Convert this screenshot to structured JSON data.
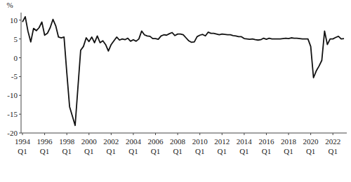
{
  "chart_data": {
    "type": "line",
    "y_label": "%",
    "categories": [
      "1994 Q1",
      null,
      null,
      null,
      null,
      null,
      null,
      null,
      "1996 Q1",
      null,
      null,
      null,
      null,
      null,
      null,
      null,
      "1998 Q1",
      null,
      null,
      null,
      null,
      null,
      null,
      null,
      "2000 Q1",
      null,
      null,
      null,
      null,
      null,
      null,
      null,
      "2002 Q1",
      null,
      null,
      null,
      null,
      null,
      null,
      null,
      "2004 Q1",
      null,
      null,
      null,
      null,
      null,
      null,
      null,
      "2006 Q1",
      null,
      null,
      null,
      null,
      null,
      null,
      null,
      "2008 Q1",
      null,
      null,
      null,
      null,
      null,
      null,
      null,
      "2010 Q1",
      null,
      null,
      null,
      null,
      null,
      null,
      null,
      "2012 Q1",
      null,
      null,
      null,
      null,
      null,
      null,
      null,
      "2014 Q1",
      null,
      null,
      null,
      null,
      null,
      null,
      null,
      "2016 Q1",
      null,
      null,
      null,
      null,
      null,
      null,
      null,
      "2018 Q1",
      null,
      null,
      null,
      null,
      null,
      null,
      null,
      "2020 Q1",
      null,
      null,
      null,
      null,
      null,
      null,
      null,
      "2022 Q1",
      null,
      null,
      null,
      null
    ],
    "values": [
      9.5,
      10.9,
      7,
      4.2,
      7.8,
      7.2,
      8,
      9.5,
      6,
      6.5,
      8,
      10.2,
      8.5,
      5.5,
      5.3,
      5.5,
      -4,
      -13,
      -15.5,
      -18,
      -8,
      2,
      3,
      5.3,
      4.3,
      5.5,
      4,
      5.8,
      4,
      4.5,
      3.5,
      1.8,
      3.5,
      4.5,
      5.5,
      4.7,
      5,
      4.8,
      5.2,
      4.4,
      4.8,
      4.4,
      5,
      7.1,
      6.1,
      5.8,
      5.7,
      5.1,
      5.1,
      4.9,
      5.8,
      6.1,
      6,
      6.4,
      6.7,
      5.9,
      6.3,
      6.3,
      6.1,
      5.3,
      4.5,
      4.1,
      4.2,
      5.6,
      6,
      6.2,
      5.8,
      6.8,
      6.5,
      6.5,
      6.3,
      6.1,
      6.3,
      6.2,
      6.1,
      6.1,
      5.9,
      5.8,
      5.6,
      5.6,
      5.1,
      5,
      4.9,
      5,
      4.8,
      4.7,
      4.8,
      5.2,
      4.9,
      5.2,
      5,
      5,
      5,
      5,
      5.1,
      5.2,
      5.1,
      5.3,
      5.2,
      5.2,
      5.1,
      5,
      5,
      5,
      3,
      -5.3,
      -3.5,
      -2.2,
      -0.7,
      7.1,
      3.5,
      5,
      5,
      5.4,
      5.7,
      5,
      5.1
    ],
    "color": "#111111",
    "ylim": [
      -20,
      12
    ],
    "yticks": [
      -20,
      -15,
      -10,
      -5,
      0,
      5,
      10
    ],
    "grid": false
  }
}
